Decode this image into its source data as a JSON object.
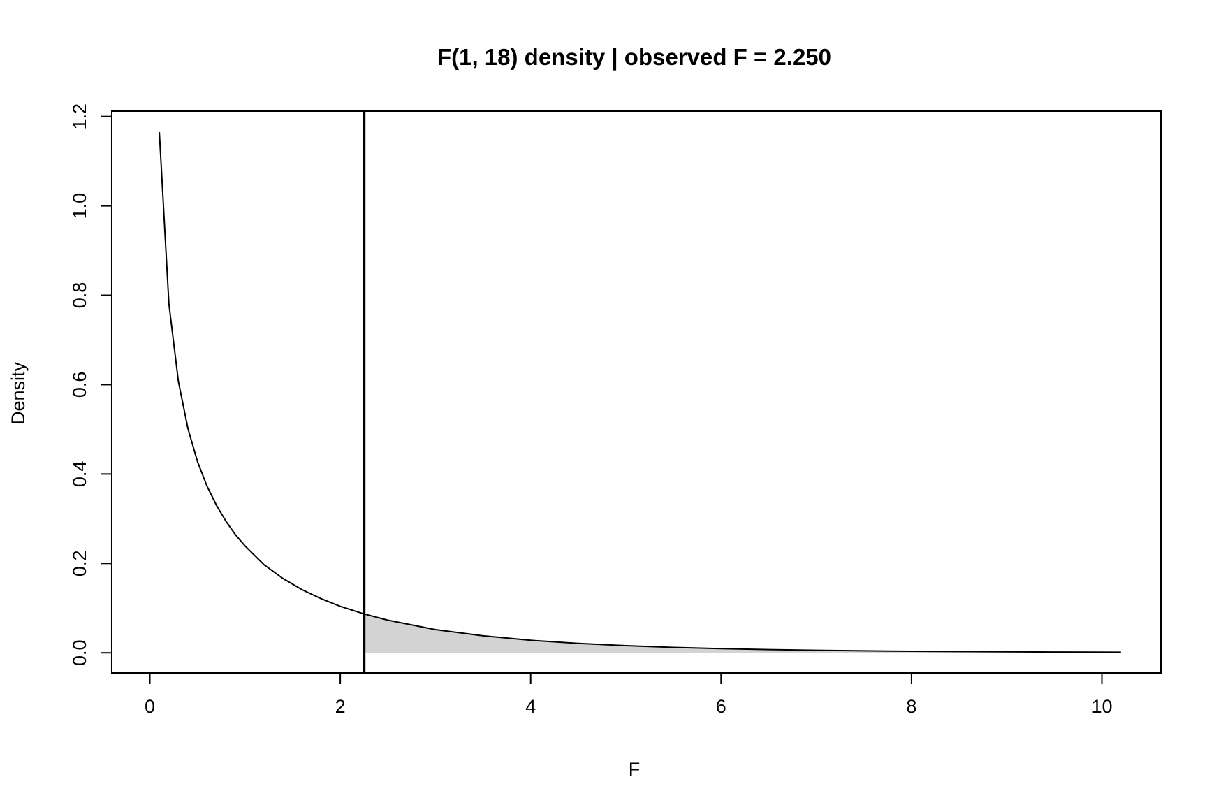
{
  "chart_data": {
    "type": "line",
    "title": "F(1, 18) density  |  observed F = 2.250",
    "xlabel": "F",
    "ylabel": "Density",
    "xlim": [
      -0.4,
      10.62
    ],
    "ylim": [
      -0.045,
      1.212
    ],
    "x_ticks": [
      "0",
      "2",
      "4",
      "6",
      "8",
      "10"
    ],
    "y_ticks": [
      "0.0",
      "0.2",
      "0.4",
      "0.6",
      "0.8",
      "1.0",
      "1.2"
    ],
    "grid": false,
    "observed_F": 2.25,
    "shaded_region": "right tail, F >= 2.25",
    "series": [
      {
        "x": [
          0.1,
          0.2,
          0.3,
          0.4,
          0.5,
          0.6,
          0.7,
          0.8,
          0.9,
          1.0,
          1.2,
          1.4,
          1.6,
          1.8,
          2.0,
          2.25,
          2.5,
          3.0,
          3.5,
          4.0,
          4.5,
          5.0,
          5.5,
          6.0,
          6.5,
          7.0,
          7.5,
          8.0,
          8.5,
          9.0,
          9.5,
          10.2
        ],
        "y": [
          1.165,
          0.781,
          0.607,
          0.502,
          0.428,
          0.373,
          0.33,
          0.294,
          0.264,
          0.239,
          0.197,
          0.166,
          0.141,
          0.121,
          0.104,
          0.087,
          0.073,
          0.052,
          0.038,
          0.028,
          0.021,
          0.016,
          0.012,
          0.0092,
          0.0072,
          0.0056,
          0.0044,
          0.0035,
          0.0028,
          0.0022,
          0.0018,
          0.0013
        ]
      }
    ]
  }
}
